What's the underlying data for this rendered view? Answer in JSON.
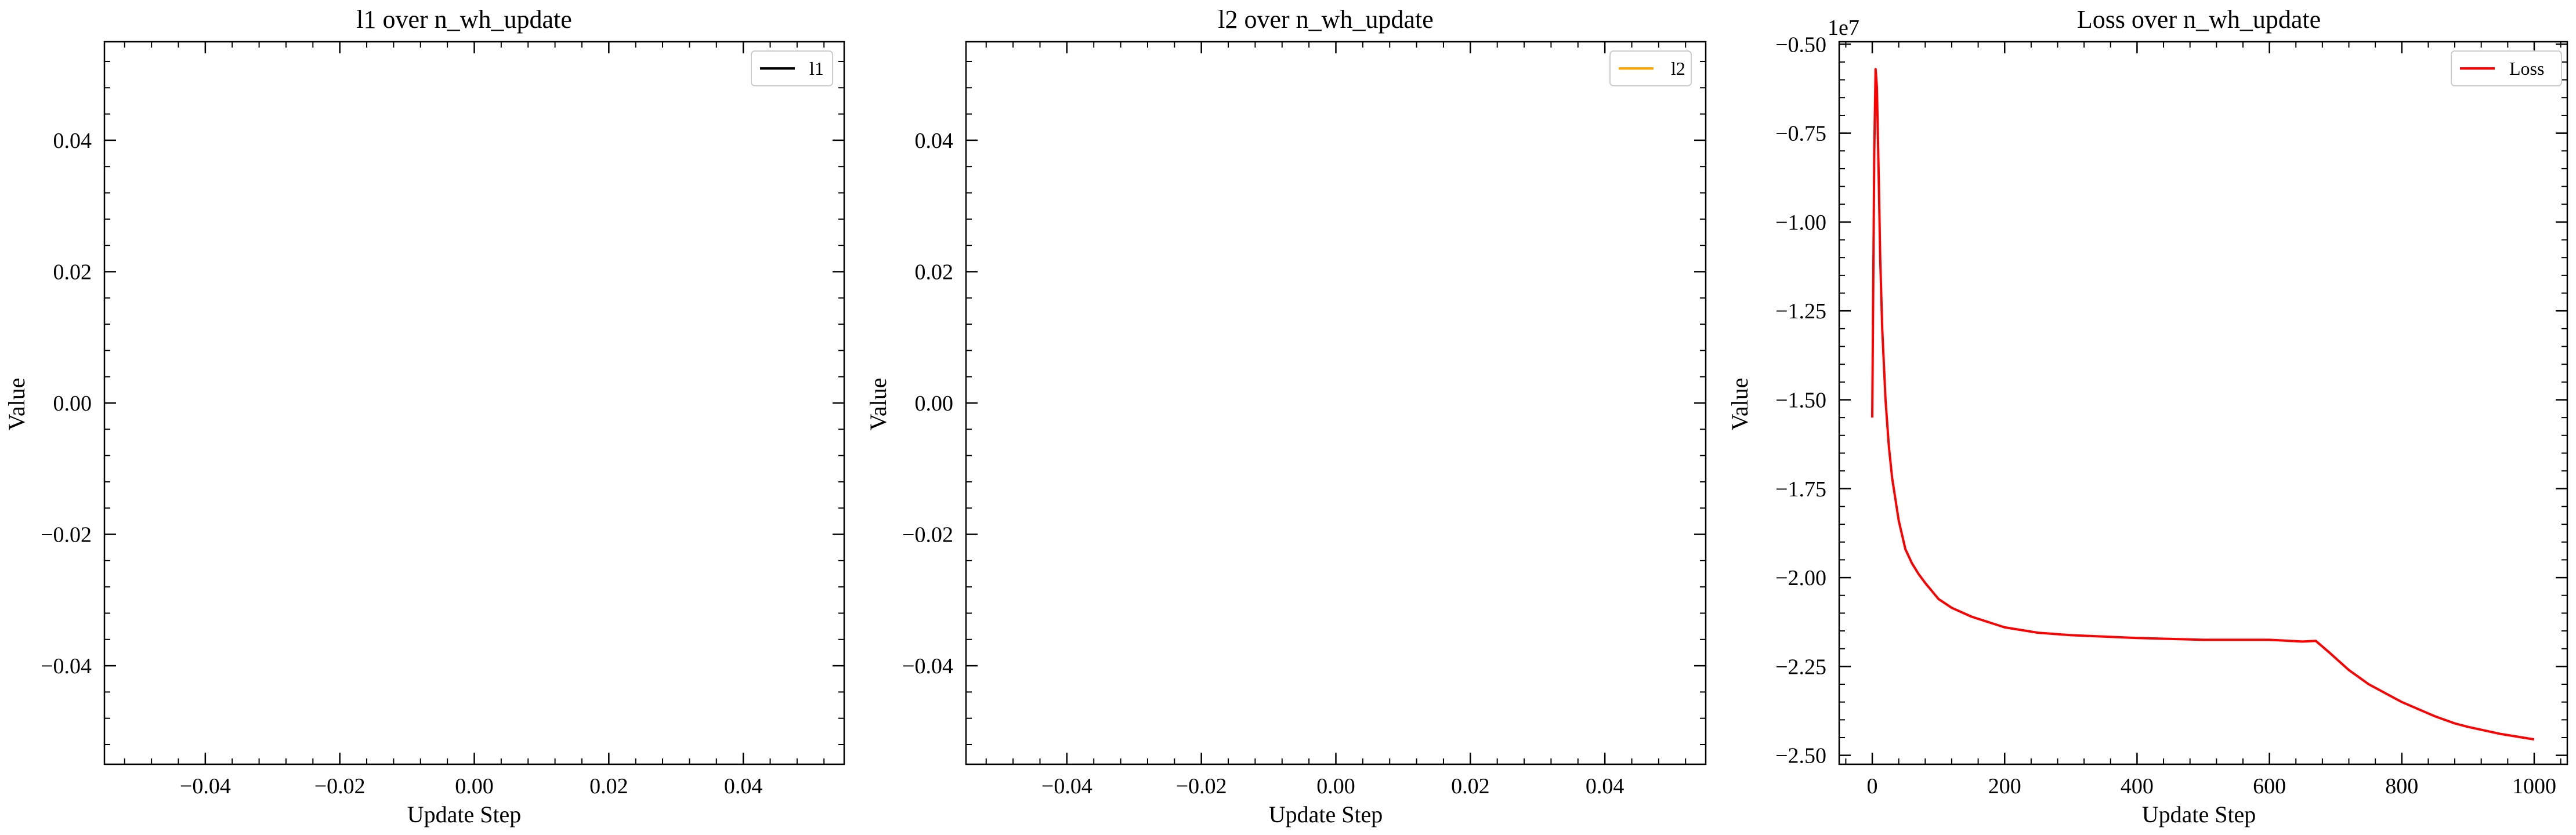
{
  "chart_data": [
    {
      "type": "line",
      "title": "l1 over n_wh_update",
      "xlabel": "Update Step",
      "ylabel": "Value",
      "xlim": [
        -0.055,
        0.055
      ],
      "ylim": [
        -0.055,
        0.055
      ],
      "xticks": [
        -0.04,
        -0.02,
        0.0,
        0.02,
        0.04
      ],
      "xtick_labels": [
        "−0.04",
        "−0.02",
        "0.00",
        "0.02",
        "0.04"
      ],
      "yticks": [
        0.04,
        0.02,
        0.0,
        -0.02,
        -0.04
      ],
      "ytick_labels": [
        "0.04",
        "0.02",
        "0.00",
        "−0.02",
        "−0.04"
      ],
      "legend_position": "top-right",
      "series": [
        {
          "name": "l1",
          "color": "#000000",
          "x": [],
          "y": []
        }
      ]
    },
    {
      "type": "line",
      "title": "l2 over n_wh_update",
      "xlabel": "Update Step",
      "ylabel": "Value",
      "xlim": [
        -0.055,
        0.055
      ],
      "ylim": [
        -0.055,
        0.055
      ],
      "xticks": [
        -0.04,
        -0.02,
        0.0,
        0.02,
        0.04
      ],
      "xtick_labels": [
        "−0.04",
        "−0.02",
        "0.00",
        "0.02",
        "0.04"
      ],
      "yticks": [
        0.04,
        0.02,
        0.0,
        -0.02,
        -0.04
      ],
      "ytick_labels": [
        "0.04",
        "0.02",
        "0.00",
        "−0.02",
        "−0.04"
      ],
      "legend_position": "top-right",
      "series": [
        {
          "name": "l2",
          "color": "#ffa500",
          "x": [],
          "y": []
        }
      ]
    },
    {
      "type": "line",
      "title": "Loss over n_wh_update",
      "xlabel": "Update Step",
      "ylabel": "Value",
      "y_offset_text": "1e7",
      "xlim": [
        -50,
        1050
      ],
      "ylim": [
        -25.25,
        -4.93
      ],
      "xticks": [
        0,
        200,
        400,
        600,
        800,
        1000
      ],
      "xtick_labels": [
        "0",
        "200",
        "400",
        "600",
        "800",
        "1000"
      ],
      "yticks": [
        -5.0,
        -7.5,
        -10.0,
        -12.5,
        -15.0,
        -17.5,
        -20.0,
        -22.5,
        -25.0
      ],
      "ytick_labels": [
        "−0.50",
        "−0.75",
        "−1.00",
        "−1.25",
        "−1.50",
        "−1.75",
        "−2.00",
        "−2.25",
        "−2.50"
      ],
      "legend_position": "top-right",
      "series": [
        {
          "name": "Loss",
          "color": "#ff0000",
          "x": [
            0,
            3,
            5,
            7,
            10,
            12,
            15,
            20,
            25,
            30,
            40,
            50,
            60,
            70,
            80,
            100,
            120,
            150,
            200,
            250,
            300,
            400,
            500,
            600,
            650,
            670,
            690,
            720,
            750,
            800,
            850,
            880,
            900,
            950,
            1000
          ],
          "y": [
            -15.5,
            -8.0,
            -5.7,
            -6.2,
            -9.0,
            -11.0,
            -13.0,
            -15.0,
            -16.3,
            -17.2,
            -18.4,
            -19.2,
            -19.6,
            -19.9,
            -20.15,
            -20.6,
            -20.85,
            -21.1,
            -21.4,
            -21.55,
            -21.62,
            -21.7,
            -21.75,
            -21.75,
            -21.8,
            -21.78,
            -22.1,
            -22.6,
            -23.0,
            -23.5,
            -23.9,
            -24.1,
            -24.2,
            -24.4,
            -24.55
          ]
        }
      ]
    }
  ]
}
